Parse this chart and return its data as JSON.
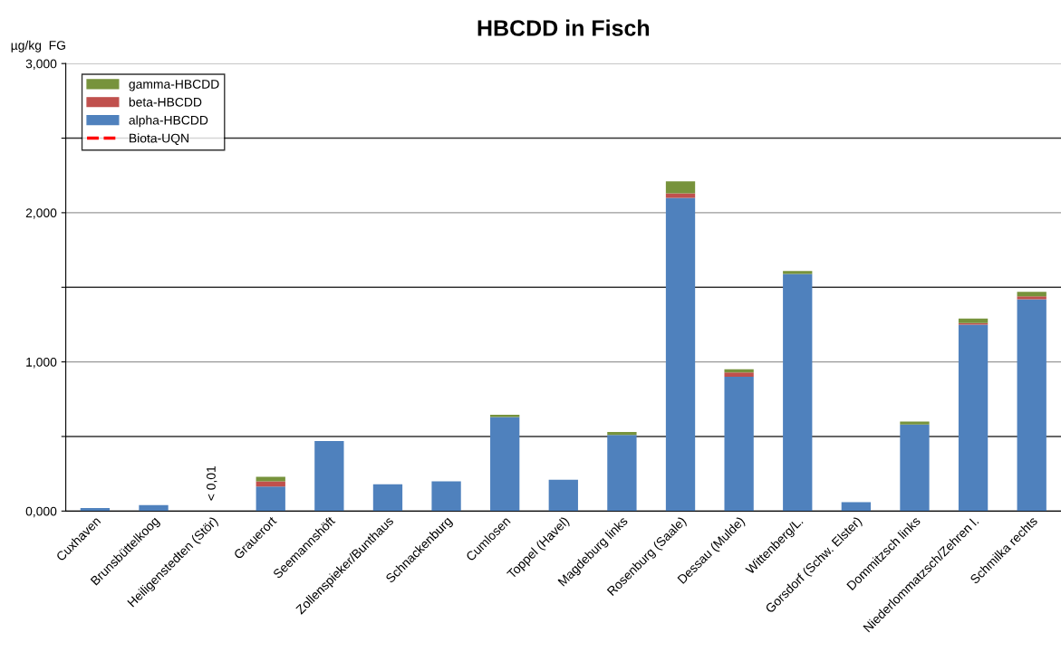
{
  "chart_data": {
    "type": "bar",
    "title": "HBCDD in Fisch",
    "ylabel": "µg/kg  FG",
    "stacked": true,
    "grid": "y",
    "legend": "top left",
    "categories": [
      "Cuxhaven",
      "Brunsbüttelkoog",
      "Heiligenstedten (Stör)",
      "Grauerort",
      "Seemannshöft",
      "Zollenspieker/Bunthaus",
      "Schnackenburg",
      "Cumlosen",
      "Toppel (Havel)",
      "Magdeburg links",
      "Rosenburg (Saale)",
      "Dessau (Mulde)",
      "Wittenberg/L.",
      "Gorsdorf (Schw. Elster)",
      "Dommitzsch links",
      "Niederlommatzsch/Zehren l.",
      "Schmilka rechts"
    ],
    "series": [
      {
        "name": "alpha-HBCDD",
        "color": "#4f81bd",
        "values": [
          0.02,
          0.04,
          null,
          0.165,
          0.47,
          0.18,
          0.2,
          0.63,
          0.21,
          0.51,
          2.1,
          0.9,
          1.59,
          0.06,
          0.58,
          1.25,
          1.42
        ]
      },
      {
        "name": "beta-HBCDD",
        "color": "#c0504d",
        "values": [
          0,
          0,
          0,
          0.035,
          0,
          0,
          0,
          0,
          0,
          0,
          0.03,
          0.03,
          0,
          0,
          0,
          0.01,
          0.02
        ]
      },
      {
        "name": "gamma-HBCDD",
        "color": "#77933c",
        "values": [
          0,
          0,
          0,
          0.03,
          0,
          0,
          0,
          0.015,
          0,
          0.02,
          0.08,
          0.02,
          0.02,
          0,
          0.02,
          0.03,
          0.03
        ]
      },
      {
        "name": "Biota-UQN",
        "type": "line",
        "color": "#ff0000",
        "line_style": "dashed",
        "values": [
          null,
          null,
          null,
          null,
          null,
          null,
          null,
          null,
          null,
          null,
          null,
          null,
          null,
          null,
          null,
          null,
          null
        ]
      }
    ],
    "ylim": [
      0,
      3
    ],
    "yticks": [
      {
        "value": 0,
        "label": "0,000"
      },
      {
        "value": 0.5,
        "label": null
      },
      {
        "value": 1,
        "label": "1,000"
      },
      {
        "value": 1.5,
        "label": null
      },
      {
        "value": 2,
        "label": "2,000"
      },
      {
        "value": 2.5,
        "label": null
      },
      {
        "value": 3,
        "label": "3,000"
      }
    ],
    "annotations": [
      {
        "text": "< 0,01",
        "x": "Heiligenstedten (Stör)",
        "y": 0
      }
    ]
  }
}
